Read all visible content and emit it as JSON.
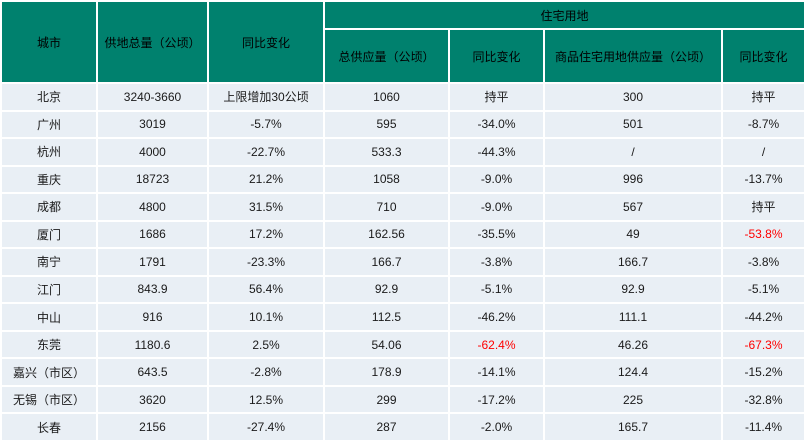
{
  "chart_data": {
    "type": "table",
    "group_header": {
      "label": "住宅用地",
      "span_columns": [
        3,
        4,
        5,
        6
      ]
    },
    "columns": [
      "城市",
      "供地总量（公顷）",
      "同比变化",
      "总供应量（公顷）",
      "同比变化",
      "商品住宅用地供应量（公顷）",
      "同比变化"
    ],
    "rows": [
      [
        "北京",
        "3240-3660",
        "上限增加30公顷",
        "1060",
        "持平",
        "300",
        "持平"
      ],
      [
        "广州",
        "3019",
        "-5.7%",
        "595",
        "-34.0%",
        "501",
        "-8.7%"
      ],
      [
        "杭州",
        "4000",
        "-22.7%",
        "533.3",
        "-44.3%",
        "/",
        "/"
      ],
      [
        "重庆",
        "18723",
        "21.2%",
        "1058",
        "-9.0%",
        "996",
        "-13.7%"
      ],
      [
        "成都",
        "4800",
        "31.5%",
        "710",
        "-9.0%",
        "567",
        "持平"
      ],
      [
        "厦门",
        "1686",
        "17.2%",
        "162.56",
        "-35.5%",
        "49",
        "-53.8%"
      ],
      [
        "南宁",
        "1791",
        "-23.3%",
        "166.7",
        "-3.8%",
        "166.7",
        "-3.8%"
      ],
      [
        "江门",
        "843.9",
        "56.4%",
        "92.9",
        "-5.1%",
        "92.9",
        "-5.1%"
      ],
      [
        "中山",
        "916",
        "10.1%",
        "112.5",
        "-46.2%",
        "111.1",
        "-44.2%"
      ],
      [
        "东莞",
        "1180.6",
        "2.5%",
        "54.06",
        "-62.4%",
        "46.26",
        "-67.3%"
      ],
      [
        "嘉兴（市区）",
        "643.5",
        "-2.8%",
        "178.9",
        "-14.1%",
        "124.4",
        "-15.2%"
      ],
      [
        "无锡（市区）",
        "3620",
        "12.5%",
        "299",
        "-17.2%",
        "225",
        "-32.8%"
      ],
      [
        "长春",
        "2156",
        "-27.4%",
        "287",
        "-2.0%",
        "165.7",
        "-11.4%"
      ]
    ],
    "red_cells": [
      [
        5,
        6
      ],
      [
        9,
        4
      ],
      [
        9,
        6
      ]
    ],
    "colors": {
      "header_bg": "#00816e",
      "row_bg": "#e9eff5",
      "divider": "#ffffff",
      "text": "#1a1a1a",
      "negative_highlight": "#ff0000"
    }
  }
}
